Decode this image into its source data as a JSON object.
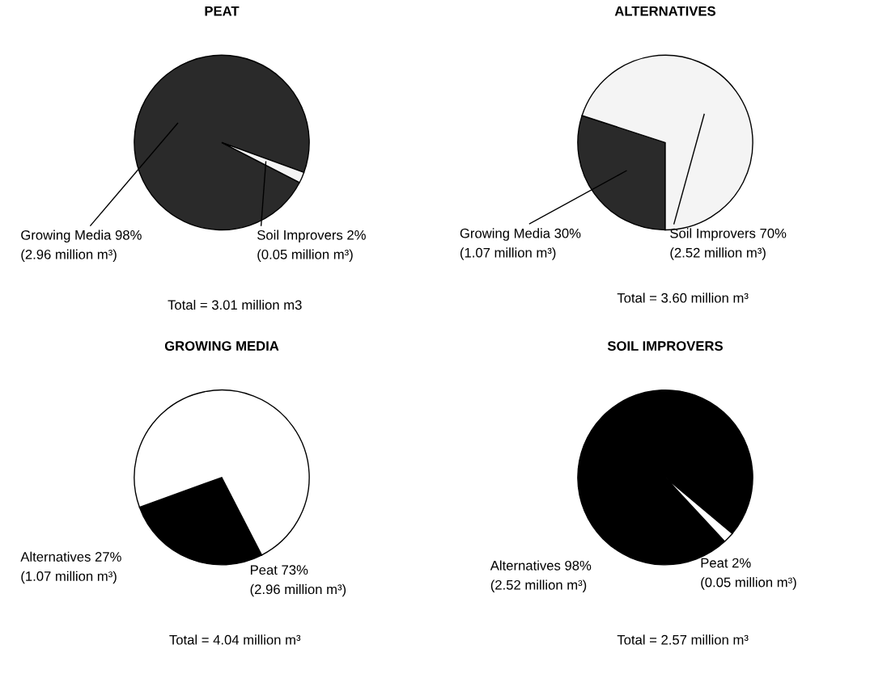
{
  "chart_data": [
    {
      "type": "pie",
      "title": "PEAT",
      "categories": [
        "Growing Media 98%\n(2.96 million m³)",
        "Soil Improvers 2%\n(0.05 million m³)"
      ],
      "values": [
        98,
        2
      ],
      "colors": [
        "#2a2a2a",
        "#f4f4f4"
      ],
      "annotations": [
        "Total = 3.01 million m3"
      ]
    },
    {
      "type": "pie",
      "title": "ALTERNATIVES",
      "categories": [
        "Growing Media 30%\n(1.07 million m³)",
        "Soil Improvers 70%\n(2.52 million m³)"
      ],
      "values": [
        30,
        70
      ],
      "colors": [
        "#2a2a2a",
        "#f4f4f4"
      ],
      "annotations": [
        "Total = 3.60 million m³"
      ]
    },
    {
      "type": "pie",
      "title": "GROWING MEDIA",
      "categories": [
        "Alternatives 27%\n(1.07 million m³)",
        "Peat 73%\n(2.96 million m³)"
      ],
      "values": [
        27,
        73
      ],
      "colors": [
        "#000000",
        "#ffffff"
      ],
      "annotations": [
        "Total = 4.04 million m³"
      ]
    },
    {
      "type": "pie",
      "title": "SOIL IMPROVERS",
      "categories": [
        "Alternatives 98%\n(2.52 million m³)",
        "Peat 2%\n(0.05 million m³)"
      ],
      "values": [
        98,
        2
      ],
      "colors": [
        "#000000",
        "#ffffff"
      ],
      "annotations": [
        "Total = 2.57 million m³"
      ]
    }
  ]
}
